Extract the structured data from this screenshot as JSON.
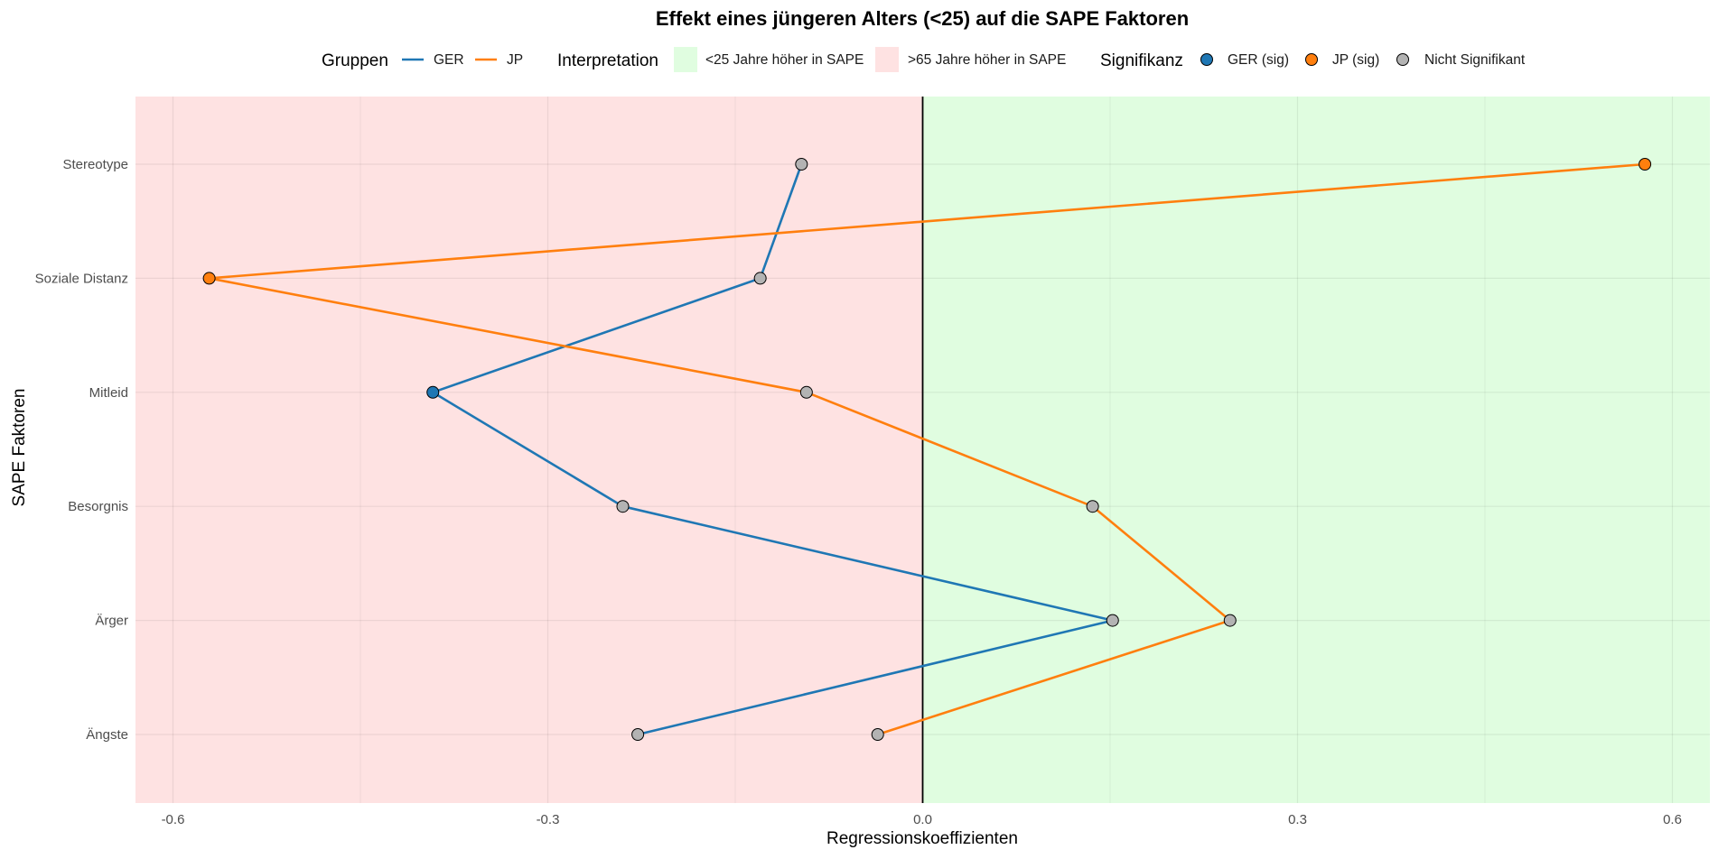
{
  "chart_data": {
    "type": "line",
    "title": "Effekt eines jüngeren Alters (<25) auf die SAPE Faktoren",
    "xlabel": "Regressionskoeffizienten",
    "ylabel": "SAPE Faktoren",
    "xlim": [
      -0.63,
      0.63
    ],
    "x_ticks": [
      -0.6,
      -0.3,
      0.0,
      0.3,
      0.6
    ],
    "x_tick_labels": [
      "-0.6",
      "-0.3",
      "0.0",
      "0.3",
      "0.6"
    ],
    "categories": [
      "Ängste",
      "Ärger",
      "Besorgnis",
      "Mitleid",
      "Soziale Distanz",
      "Stereotype"
    ],
    "grid": true,
    "legend_position": "top",
    "series": [
      {
        "name": "GER",
        "color": "#1f77b4",
        "values": [
          -0.228,
          0.152,
          -0.24,
          -0.392,
          -0.13,
          -0.097
        ],
        "significant": [
          false,
          false,
          false,
          true,
          false,
          false
        ]
      },
      {
        "name": "JP",
        "color": "#ff7f0e",
        "values": [
          -0.036,
          0.246,
          0.136,
          -0.093,
          -0.571,
          0.578
        ],
        "significant": [
          false,
          false,
          false,
          false,
          true,
          true
        ]
      }
    ],
    "regions": [
      {
        "label": "<25 Jahre höher in SAPE",
        "color": "#e0fde0",
        "side": "positive"
      },
      {
        "label": ">65 Jahre höher in SAPE",
        "color": "#fee2e2",
        "side": "negative"
      }
    ],
    "zero_line_color": "#000000",
    "nonsig_color": "#b3b3b3",
    "legend": {
      "groups_title": "Gruppen",
      "groups": [
        {
          "label": "GER",
          "color": "#1f77b4"
        },
        {
          "label": "JP",
          "color": "#ff7f0e"
        }
      ],
      "interpretation_title": "Interpretation",
      "interpretation": [
        {
          "label": "<25 Jahre höher in SAPE",
          "color": "#e0fde0"
        },
        {
          "label": ">65 Jahre höher in SAPE",
          "color": "#fee2e2"
        }
      ],
      "significance_title": "Signifikanz",
      "significance": [
        {
          "label": "GER (sig)",
          "color": "#1f77b4"
        },
        {
          "label": "JP (sig)",
          "color": "#ff7f0e"
        },
        {
          "label": "Nicht Signifikant",
          "color": "#b3b3b3"
        }
      ]
    }
  }
}
